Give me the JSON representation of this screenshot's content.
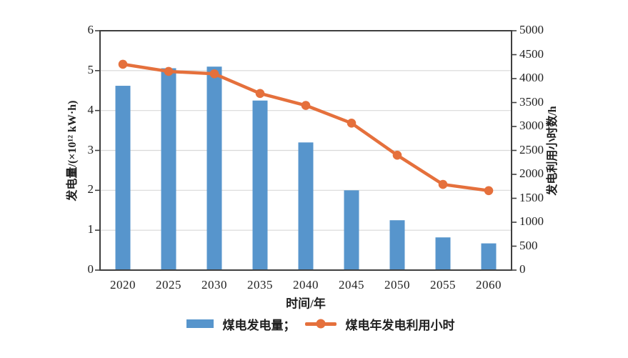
{
  "chart_data": {
    "type": "bar",
    "subtype": "bar+line dual-axis combo",
    "categories": [
      "2020",
      "2025",
      "2030",
      "2035",
      "2040",
      "2045",
      "2050",
      "2055",
      "2060"
    ],
    "series": [
      {
        "name": "煤电发电量",
        "type": "bar",
        "axis": "left",
        "unit": "×10¹² kW·h",
        "values": [
          4.62,
          5.06,
          5.1,
          4.25,
          3.2,
          2.0,
          1.25,
          0.82,
          0.67
        ]
      },
      {
        "name": "煤电年发电利用小时",
        "type": "line",
        "axis": "right",
        "unit": "h",
        "values": [
          4300,
          4150,
          4100,
          3690,
          3440,
          3070,
          2400,
          1790,
          1660
        ]
      }
    ],
    "left_axis": {
      "label": "发电量/(×10¹² kW·h)",
      "min": 0,
      "max": 6,
      "ticks": [
        "0",
        "1",
        "2",
        "3",
        "4",
        "5",
        "6"
      ]
    },
    "right_axis": {
      "label": "发电利用小时数/h",
      "min": 0,
      "max": 5000,
      "ticks": [
        "0",
        "500",
        "1000",
        "1500",
        "2000",
        "2500",
        "3000",
        "3500",
        "4000",
        "4500",
        "5000"
      ]
    },
    "x_axis": {
      "label": "时间/年"
    },
    "grid": "horizontal gridlines at left-axis values 1-5",
    "legend_position": "bottom"
  },
  "legend": {
    "bar_label": "煤电发电量；",
    "line_label": "煤电年发电利用小时"
  },
  "colors": {
    "bar": "#5795CC",
    "line": "#E5703C",
    "grid": "#D9D9D9",
    "axis": "#3F3F3F",
    "text": "#1F1F1F",
    "background": "#FFFFFF"
  }
}
